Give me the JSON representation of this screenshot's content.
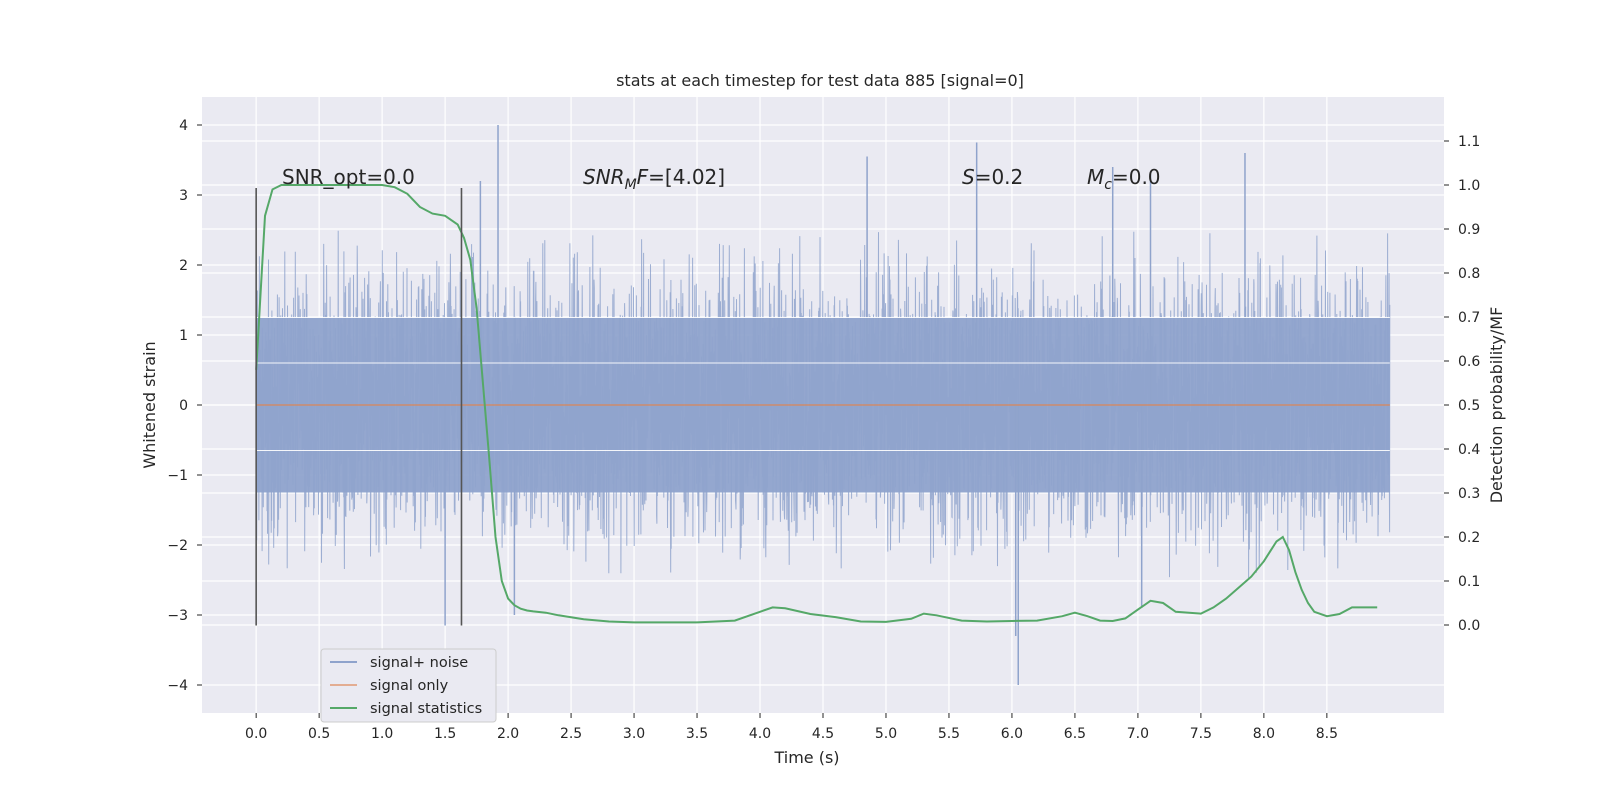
{
  "chart_data": {
    "type": "line",
    "title": "stats at each timestep for test data 885 [signal=0]",
    "xlabel": "Time (s)",
    "ylabel_left": "Whitened strain",
    "ylabel_right": "Detection probability/MF",
    "xlim": [
      -0.43,
      9.43
    ],
    "ylim_left": [
      -4.4,
      4.4
    ],
    "ylim_right": [
      -0.2,
      1.2
    ],
    "x_ticks": [
      "0.0",
      "0.5",
      "1.0",
      "1.5",
      "2.0",
      "2.5",
      "3.0",
      "3.5",
      "4.0",
      "4.5",
      "5.0",
      "5.5",
      "6.0",
      "6.5",
      "7.0",
      "7.5",
      "8.0",
      "8.5"
    ],
    "y_ticks_left": [
      "−4",
      "−3",
      "−2",
      "−1",
      "0",
      "1",
      "2",
      "3",
      "4"
    ],
    "y_ticks_right": [
      "0.0",
      "0.1",
      "0.2",
      "0.3",
      "0.4",
      "0.5",
      "0.6",
      "0.7",
      "0.8",
      "0.9",
      "1.0",
      "1.1"
    ],
    "grid": true,
    "legend_position": "lower left",
    "annotations": {
      "snr_opt": "SNR_opt=0.0",
      "snr_mf": "=[4.02]",
      "snr_mf_sym": "SNR",
      "snr_mf_sub": "M",
      "snr_mf_f": "F",
      "s_sym": "S",
      "s_val": "=0.2",
      "mc_sym": "M",
      "mc_sub": "c",
      "mc_val": "=0.0"
    },
    "vertical_markers": [
      0.0,
      1.63
    ],
    "series": [
      {
        "name": "signal+ noise",
        "axis": "left",
        "color": "#8fa3cc",
        "x_range": [
          0.0,
          9.0
        ],
        "typical_range": [
          -2.1,
          2.1
        ],
        "peaks": [
          [
            1.92,
            4.0
          ],
          [
            5.72,
            3.75
          ],
          [
            4.85,
            3.55
          ],
          [
            7.85,
            3.6
          ],
          [
            6.8,
            3.4
          ],
          [
            7.1,
            3.3
          ],
          [
            1.78,
            3.2
          ],
          [
            6.05,
            -4.0
          ],
          [
            6.03,
            -3.3
          ],
          [
            1.5,
            -3.15
          ],
          [
            2.05,
            -3.0
          ],
          [
            7.03,
            -2.9
          ]
        ]
      },
      {
        "name": "signal only",
        "axis": "left",
        "color": "#dd8452",
        "x": [
          0.0,
          9.0
        ],
        "y": [
          0.0,
          0.0
        ]
      },
      {
        "name": "signal statistics",
        "axis": "right",
        "color": "#55a868",
        "x": [
          0.0,
          0.07,
          0.13,
          0.2,
          0.3,
          0.5,
          0.8,
          1.0,
          1.1,
          1.2,
          1.3,
          1.4,
          1.5,
          1.6,
          1.65,
          1.7,
          1.75,
          1.8,
          1.85,
          1.9,
          1.95,
          2.0,
          2.05,
          2.1,
          2.15,
          2.2,
          2.3,
          2.4,
          2.6,
          2.8,
          3.0,
          3.5,
          3.8,
          4.0,
          4.1,
          4.2,
          4.4,
          4.6,
          4.8,
          5.0,
          5.2,
          5.3,
          5.4,
          5.6,
          5.8,
          6.0,
          6.2,
          6.4,
          6.5,
          6.6,
          6.7,
          6.8,
          6.9,
          7.0,
          7.1,
          7.2,
          7.3,
          7.5,
          7.6,
          7.7,
          7.8,
          7.9,
          8.0,
          8.1,
          8.15,
          8.2,
          8.25,
          8.3,
          8.35,
          8.4,
          8.5,
          8.6,
          8.7,
          8.8,
          8.9
        ],
        "y": [
          0.58,
          0.93,
          0.99,
          1.0,
          1.0,
          1.0,
          1.0,
          1.0,
          0.995,
          0.98,
          0.95,
          0.935,
          0.93,
          0.91,
          0.88,
          0.83,
          0.72,
          0.55,
          0.38,
          0.2,
          0.1,
          0.06,
          0.045,
          0.037,
          0.033,
          0.031,
          0.028,
          0.022,
          0.013,
          0.008,
          0.006,
          0.006,
          0.01,
          0.03,
          0.04,
          0.038,
          0.025,
          0.018,
          0.008,
          0.007,
          0.014,
          0.026,
          0.022,
          0.01,
          0.008,
          0.009,
          0.01,
          0.02,
          0.028,
          0.02,
          0.01,
          0.009,
          0.015,
          0.035,
          0.055,
          0.05,
          0.03,
          0.026,
          0.04,
          0.06,
          0.085,
          0.11,
          0.145,
          0.19,
          0.2,
          0.17,
          0.12,
          0.08,
          0.05,
          0.03,
          0.02,
          0.025,
          0.04,
          0.04,
          0.04
        ]
      }
    ]
  }
}
